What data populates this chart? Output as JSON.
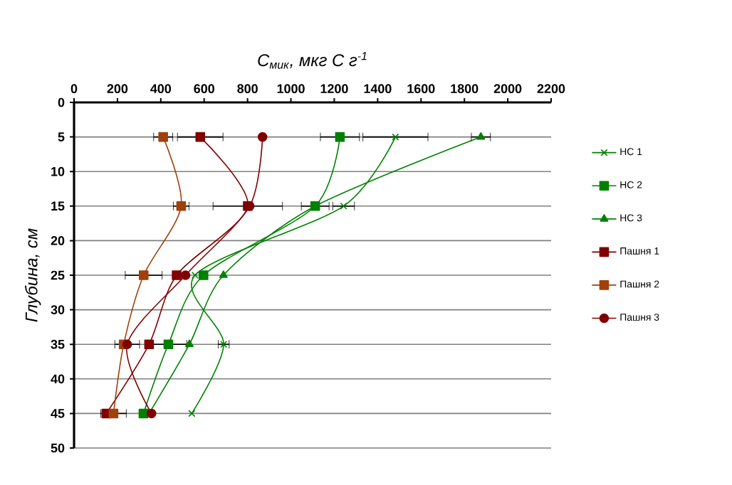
{
  "chart_data": {
    "type": "line",
    "xlabel": "C$_{мик}$, мкг С г$^{-1}$",
    "ylabel": "Глубина, см",
    "xlim": [
      0,
      2200
    ],
    "xticks": [
      0,
      200,
      400,
      600,
      800,
      1000,
      1200,
      1400,
      1600,
      1800,
      2000,
      2200
    ],
    "ylim": [
      50,
      0
    ],
    "yticks": [
      0,
      5,
      10,
      15,
      20,
      25,
      30,
      35,
      40,
      45,
      50
    ],
    "grid": "y",
    "legend": "right",
    "line_style": "solid",
    "series": [
      {
        "name": "НС 1",
        "color": "#008000",
        "marker": "cross",
        "x": [
          1482,
          1243,
          558,
          690,
          543
        ],
        "values": [
          5,
          15,
          25,
          35,
          45
        ],
        "xerrors": [
          150,
          50,
          null,
          25,
          null
        ]
      },
      {
        "name": "НС 2",
        "color": "#008000",
        "marker": "square",
        "x": [
          1226,
          1112,
          597,
          435,
          320
        ],
        "values": [
          5,
          15,
          25,
          35,
          45
        ],
        "xerrors": [
          90,
          64,
          null,
          84,
          null
        ]
      },
      {
        "name": "НС 3",
        "color": "#008000",
        "marker": "triangle",
        "x": [
          1876,
          1112,
          689,
          532,
          346
        ],
        "values": [
          5,
          15,
          25,
          35,
          45
        ],
        "xerrors": [
          44,
          null,
          null,
          null,
          null
        ]
      },
      {
        "name": "Пашня 1",
        "color": "#800000",
        "marker": "square",
        "x": [
          582,
          801,
          473,
          346,
          149
        ],
        "values": [
          5,
          15,
          25,
          35,
          45
        ],
        "xerrors": [
          105,
          160,
          null,
          null,
          null
        ]
      },
      {
        "name": "Пашня 2",
        "color": "#a0400a",
        "marker": "square",
        "x": [
          411,
          494,
          321,
          229,
          182
        ],
        "values": [
          5,
          15,
          25,
          35,
          45
        ],
        "xerrors": [
          44,
          36,
          85,
          null,
          59
        ]
      },
      {
        "name": "Пашня 3",
        "color": "#800000",
        "marker": "circle",
        "x": [
          869,
          810,
          514,
          245,
          357
        ],
        "values": [
          5,
          15,
          25,
          35,
          45
        ],
        "xerrors": [
          null,
          null,
          null,
          57,
          null
        ]
      }
    ]
  }
}
